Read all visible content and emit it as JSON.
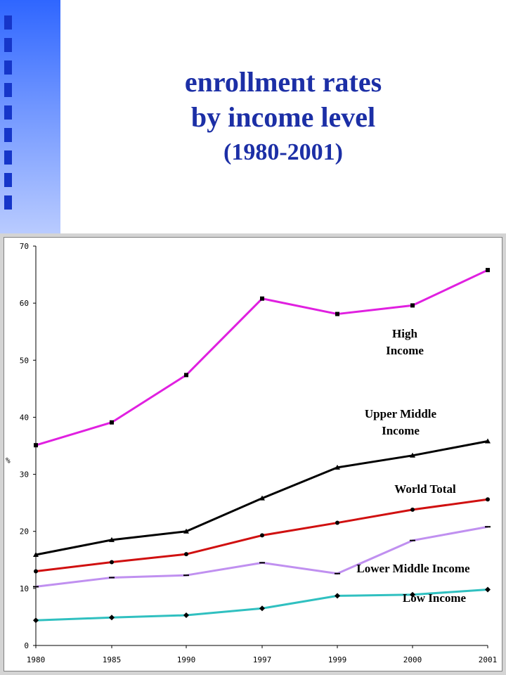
{
  "title": {
    "line1": "enrollment rates",
    "line2": "by income level",
    "line3": "(1980-2001)"
  },
  "chart_data": {
    "type": "line",
    "ylabel": "%",
    "ylim": [
      0,
      70
    ],
    "yticks": [
      0,
      10,
      20,
      30,
      40,
      50,
      60,
      70
    ],
    "x": [
      "1980",
      "1985",
      "1990",
      "1997",
      "1999",
      "2000",
      "2001"
    ],
    "grid": false,
    "series": [
      {
        "name": "High Income",
        "label_lines": [
          "High",
          "Income"
        ],
        "color": "#e020e0",
        "values": [
          35.1,
          39.1,
          47.4,
          60.8,
          58.1,
          59.6,
          65.8
        ]
      },
      {
        "name": "Upper Middle Income",
        "label_lines": [
          "Upper Middle",
          "Income"
        ],
        "color": "#000000",
        "values": [
          15.9,
          18.5,
          20.0,
          25.8,
          31.2,
          33.3,
          35.8
        ]
      },
      {
        "name": "World Total",
        "label_lines": [
          "World Total"
        ],
        "color": "#d01010",
        "values": [
          13.0,
          14.6,
          16.0,
          19.3,
          21.5,
          23.8,
          25.6
        ]
      },
      {
        "name": "Lower Middle Income",
        "label_lines": [
          "Lower Middle Income"
        ],
        "color": "#c090f0",
        "values": [
          10.3,
          11.9,
          12.3,
          14.5,
          12.6,
          18.4,
          20.8
        ]
      },
      {
        "name": "Low Income",
        "label_lines": [
          "Low Income"
        ],
        "color": "#30c0c0",
        "values": [
          4.4,
          4.9,
          5.3,
          6.5,
          8.7,
          8.9,
          9.8
        ]
      }
    ]
  }
}
